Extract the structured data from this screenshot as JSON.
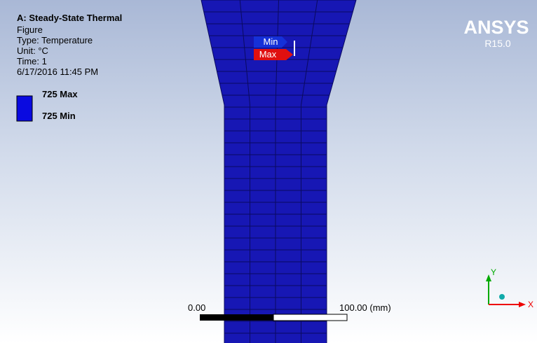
{
  "header": {
    "title": "A: Steady-State Thermal",
    "lines": [
      "Figure",
      "Type: Temperature",
      "Unit: °C",
      "Time: 1",
      "6/17/2016 11:45 PM"
    ]
  },
  "legend": {
    "max": "725 Max",
    "min": "725 Min"
  },
  "logo": {
    "name": "ANSYS",
    "version": "R15.0"
  },
  "probes": {
    "min": "Min",
    "max": "Max"
  },
  "scale": {
    "start": "0.00",
    "end": "100.00 (mm)"
  },
  "triad": {
    "y": "Y",
    "x": "X"
  }
}
